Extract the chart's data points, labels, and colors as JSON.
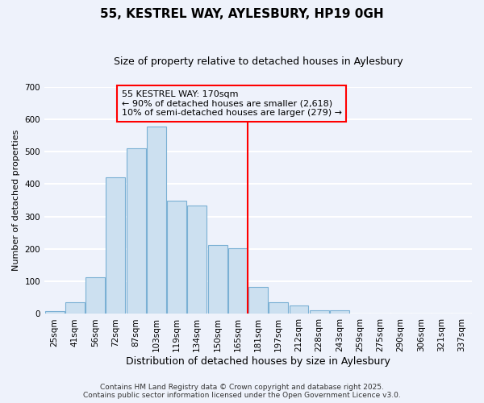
{
  "title": "55, KESTREL WAY, AYLESBURY, HP19 0GH",
  "subtitle": "Size of property relative to detached houses in Aylesbury",
  "xlabel": "Distribution of detached houses by size in Aylesbury",
  "ylabel": "Number of detached properties",
  "categories": [
    "25sqm",
    "41sqm",
    "56sqm",
    "72sqm",
    "87sqm",
    "103sqm",
    "119sqm",
    "134sqm",
    "150sqm",
    "165sqm",
    "181sqm",
    "197sqm",
    "212sqm",
    "228sqm",
    "243sqm",
    "259sqm",
    "275sqm",
    "290sqm",
    "306sqm",
    "321sqm",
    "337sqm"
  ],
  "values": [
    8,
    35,
    113,
    422,
    510,
    578,
    348,
    335,
    212,
    202,
    83,
    37,
    25,
    12,
    12,
    0,
    0,
    0,
    0,
    0,
    2
  ],
  "bar_color": "#cce0f0",
  "bar_edge_color": "#7ab0d4",
  "vline_x": 9.5,
  "vline_color": "red",
  "annotation_title": "55 KESTREL WAY: 170sqm",
  "annotation_line1": "← 90% of detached houses are smaller (2,618)",
  "annotation_line2": "10% of semi-detached houses are larger (279) →",
  "annotation_box_color": "red",
  "ylim": [
    0,
    700
  ],
  "yticks": [
    0,
    100,
    200,
    300,
    400,
    500,
    600,
    700
  ],
  "footer1": "Contains HM Land Registry data © Crown copyright and database right 2025.",
  "footer2": "Contains public sector information licensed under the Open Government Licence v3.0.",
  "bg_color": "#eef2fb",
  "grid_color": "white",
  "title_fontsize": 11,
  "subtitle_fontsize": 9,
  "xlabel_fontsize": 9,
  "ylabel_fontsize": 8,
  "tick_fontsize": 7.5,
  "annotation_fontsize": 8,
  "footer_fontsize": 6.5
}
